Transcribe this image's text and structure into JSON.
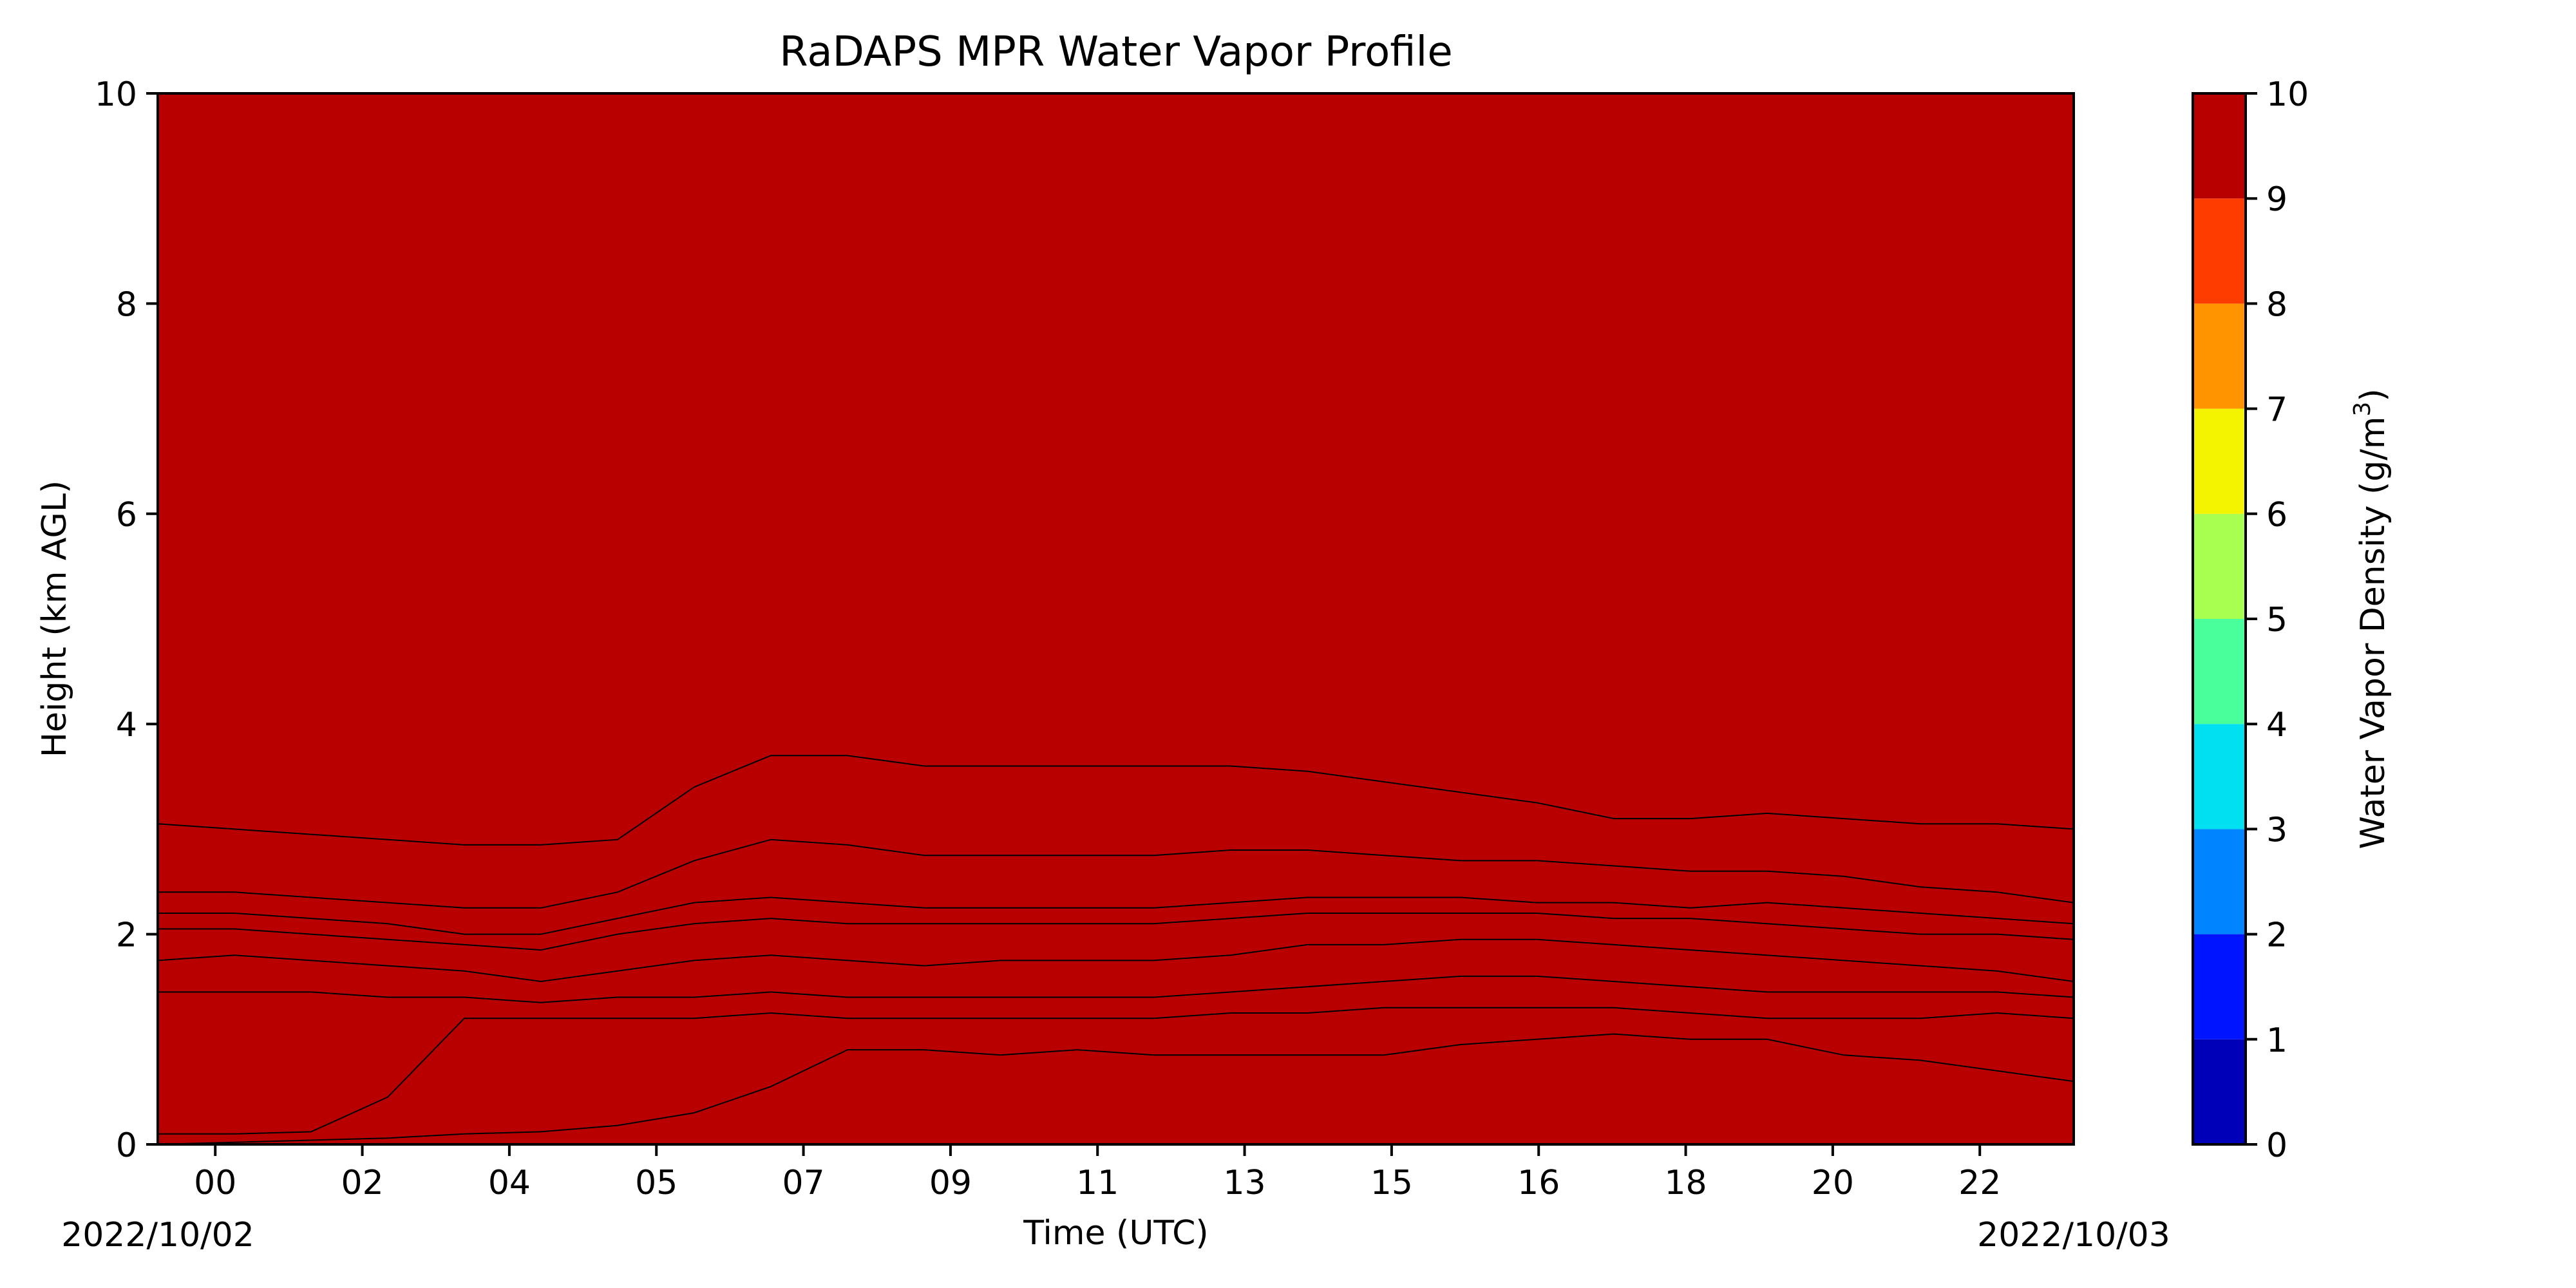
{
  "chart_data": {
    "type": "heatmap",
    "subtype": "filled-contour",
    "title": "RaDAPS MPR Water Vapor Profile",
    "xlabel": "Time (UTC)",
    "ylabel": "Height (km AGL)",
    "colorbar_label_prefix": "Water Vapor Density (g/m",
    "colorbar_label_sup": "3",
    "colorbar_label_suffix": ")",
    "start_date_label": "2022/10/02",
    "end_date_label": "2022/10/03",
    "x_ticks": [
      "00",
      "02",
      "04",
      "05",
      "07",
      "09",
      "11",
      "13",
      "15",
      "16",
      "18",
      "20",
      "22"
    ],
    "ylim": [
      0,
      10
    ],
    "y_ticks": [
      "0",
      "2",
      "4",
      "6",
      "8",
      "10"
    ],
    "levels": [
      0,
      1,
      2,
      3,
      4,
      5,
      6,
      7,
      8,
      9,
      10
    ],
    "level_labels": [
      "0",
      "1",
      "2",
      "3",
      "4",
      "5",
      "6",
      "7",
      "8",
      "9",
      "10"
    ],
    "level_colors": [
      "#0000b8",
      "#0014ff",
      "#0084ff",
      "#00e0f0",
      "#48ff9c",
      "#a8ff50",
      "#f4f400",
      "#ff9400",
      "#ff3c00",
      "#b80000"
    ],
    "grid": false,
    "colormap": "jet",
    "contour_heights_km": {
      "time_fraction": [
        0,
        0.04,
        0.08,
        0.12,
        0.16,
        0.2,
        0.24,
        0.28,
        0.32,
        0.36,
        0.4,
        0.44,
        0.48,
        0.52,
        0.56,
        0.6,
        0.64,
        0.68,
        0.72,
        0.76,
        0.8,
        0.84,
        0.88,
        0.92,
        0.96,
        1
      ],
      "1": [
        3.05,
        3.0,
        2.95,
        2.9,
        2.85,
        2.85,
        2.9,
        3.4,
        3.7,
        3.7,
        3.6,
        3.6,
        3.6,
        3.6,
        3.6,
        3.55,
        3.45,
        3.35,
        3.25,
        3.1,
        3.1,
        3.15,
        3.1,
        3.05,
        3.05,
        3.0
      ],
      "2": [
        2.4,
        2.4,
        2.35,
        2.3,
        2.25,
        2.25,
        2.4,
        2.7,
        2.9,
        2.85,
        2.75,
        2.75,
        2.75,
        2.75,
        2.8,
        2.8,
        2.75,
        2.7,
        2.7,
        2.65,
        2.6,
        2.6,
        2.55,
        2.45,
        2.4,
        2.3
      ],
      "3": [
        2.2,
        2.2,
        2.15,
        2.1,
        2.0,
        2.0,
        2.15,
        2.3,
        2.35,
        2.3,
        2.25,
        2.25,
        2.25,
        2.25,
        2.3,
        2.35,
        2.35,
        2.35,
        2.3,
        2.3,
        2.25,
        2.3,
        2.25,
        2.2,
        2.15,
        2.1
      ],
      "4": [
        2.05,
        2.05,
        2.0,
        1.95,
        1.9,
        1.85,
        2.0,
        2.1,
        2.15,
        2.1,
        2.1,
        2.1,
        2.1,
        2.1,
        2.15,
        2.2,
        2.2,
        2.2,
        2.2,
        2.15,
        2.15,
        2.1,
        2.05,
        2.0,
        2.0,
        1.95
      ],
      "5": [
        1.75,
        1.8,
        1.75,
        1.7,
        1.65,
        1.55,
        1.65,
        1.75,
        1.8,
        1.75,
        1.7,
        1.75,
        1.75,
        1.75,
        1.8,
        1.9,
        1.9,
        1.95,
        1.95,
        1.9,
        1.85,
        1.8,
        1.75,
        1.7,
        1.65,
        1.55
      ],
      "6": [
        1.45,
        1.45,
        1.45,
        1.4,
        1.4,
        1.35,
        1.4,
        1.4,
        1.45,
        1.4,
        1.4,
        1.4,
        1.4,
        1.4,
        1.45,
        1.5,
        1.55,
        1.6,
        1.6,
        1.55,
        1.5,
        1.45,
        1.45,
        1.45,
        1.45,
        1.4
      ],
      "7": [
        0.1,
        0.1,
        0.12,
        0.45,
        1.2,
        1.2,
        1.2,
        1.2,
        1.25,
        1.2,
        1.2,
        1.2,
        1.2,
        1.2,
        1.25,
        1.25,
        1.3,
        1.3,
        1.3,
        1.3,
        1.25,
        1.2,
        1.2,
        1.2,
        1.25,
        1.2
      ],
      "8": [
        0.0,
        0.02,
        0.04,
        0.06,
        0.1,
        0.12,
        0.18,
        0.3,
        0.55,
        0.9,
        0.9,
        0.85,
        0.9,
        0.85,
        0.85,
        0.85,
        0.85,
        0.95,
        1.0,
        1.05,
        1.0,
        1.0,
        0.85,
        0.8,
        0.7,
        0.6
      ],
      "9": [
        0.0,
        0.0,
        0.0,
        0.0,
        0.0,
        0.0,
        0.0,
        0.0,
        0.0,
        0.0,
        0.0,
        0.0,
        0.0,
        0.0,
        0.0,
        0.0,
        0.0,
        0.0,
        0.0,
        0.0,
        0.0,
        0.0,
        0.0,
        0.0,
        0.0,
        0.0
      ]
    }
  }
}
